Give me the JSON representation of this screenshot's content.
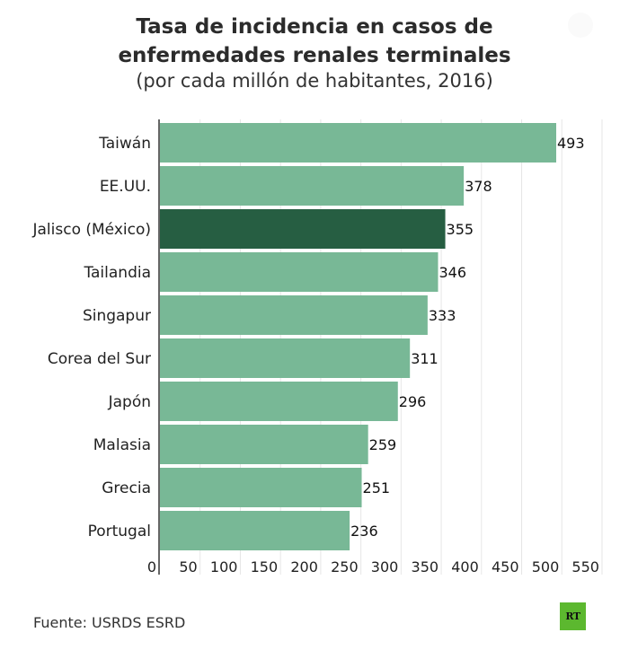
{
  "chart_data": {
    "type": "bar",
    "orientation": "horizontal",
    "title": "Tasa de incidencia en casos de enfermedades renales terminales",
    "title_lines": [
      "Tasa de incidencia en casos de",
      "enfermedades renales terminales"
    ],
    "subtitle": "(por cada millón de habitantes, 2016)",
    "categories": [
      "Taiwán",
      "EE.UU.",
      "Jalisco (México)",
      "Tailandia",
      "Singapur",
      "Corea del Sur",
      "Japón",
      "Malasia",
      "Grecia",
      "Portugal"
    ],
    "values": [
      493,
      378,
      355,
      346,
      333,
      311,
      296,
      259,
      251,
      236
    ],
    "highlight_index": 2,
    "xlim": [
      0,
      550
    ],
    "xticks": [
      0,
      50,
      100,
      150,
      200,
      250,
      300,
      350,
      400,
      450,
      500,
      550
    ],
    "xtick_labels": [
      "0",
      "50",
      "100",
      "150",
      "200",
      "250",
      "300",
      "350",
      "400",
      "450",
      "500",
      "550"
    ],
    "xlabel": "",
    "ylabel": "",
    "grid": true,
    "colors": {
      "bar": "#78b896",
      "highlight": "#265e42",
      "grid": "#e6e6e6",
      "axis": "#333333"
    }
  },
  "footer": {
    "source": "Fuente: USRDS ESRD",
    "logo_text": "RT",
    "logo_color": "#5cb82f"
  }
}
